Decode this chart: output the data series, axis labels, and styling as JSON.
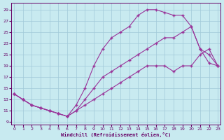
{
  "xlabel": "Windchill (Refroidissement éolien,°C)",
  "xlim": [
    -0.3,
    23.3
  ],
  "ylim": [
    8.5,
    30.2
  ],
  "xticks": [
    0,
    1,
    2,
    3,
    4,
    5,
    6,
    7,
    8,
    9,
    10,
    11,
    12,
    13,
    14,
    15,
    16,
    17,
    18,
    19,
    20,
    21,
    22,
    23
  ],
  "yticks": [
    9,
    11,
    13,
    15,
    17,
    19,
    21,
    23,
    25,
    27,
    29
  ],
  "bg_color": "#c8eaf0",
  "line_color": "#993399",
  "grid_color": "#a0c8d8",
  "curve1_x": [
    0,
    1,
    2,
    3,
    4,
    5,
    6,
    7,
    8,
    9,
    10,
    11,
    12,
    13,
    14,
    15,
    16,
    17,
    18,
    19,
    20,
    21,
    22,
    23
  ],
  "curve1_y": [
    14,
    13,
    12,
    11.5,
    11,
    10.5,
    10,
    12,
    15,
    19,
    22,
    24,
    25,
    26,
    28,
    29,
    29,
    28.5,
    28,
    28,
    26,
    22,
    19.5,
    19
  ],
  "curve2_x": [
    0,
    1,
    2,
    3,
    4,
    5,
    6,
    7,
    8,
    9,
    10,
    11,
    12,
    13,
    14,
    15,
    16,
    17,
    18,
    19,
    20,
    21,
    22,
    23
  ],
  "curve2_y": [
    14,
    13,
    12,
    11.5,
    11,
    10.5,
    10,
    11,
    13,
    15,
    17,
    18,
    19,
    20,
    21,
    22,
    23,
    24,
    24,
    25,
    26,
    22,
    21,
    19
  ],
  "curve3_x": [
    0,
    1,
    2,
    3,
    4,
    5,
    6,
    7,
    8,
    9,
    10,
    11,
    12,
    13,
    14,
    15,
    16,
    17,
    18,
    19,
    20,
    21,
    22,
    23
  ],
  "curve3_y": [
    14,
    13,
    12,
    11.5,
    11,
    10.5,
    10,
    11,
    12,
    13,
    14,
    15,
    16,
    17,
    18,
    19,
    19,
    19,
    18,
    19,
    19,
    21,
    22,
    19
  ]
}
